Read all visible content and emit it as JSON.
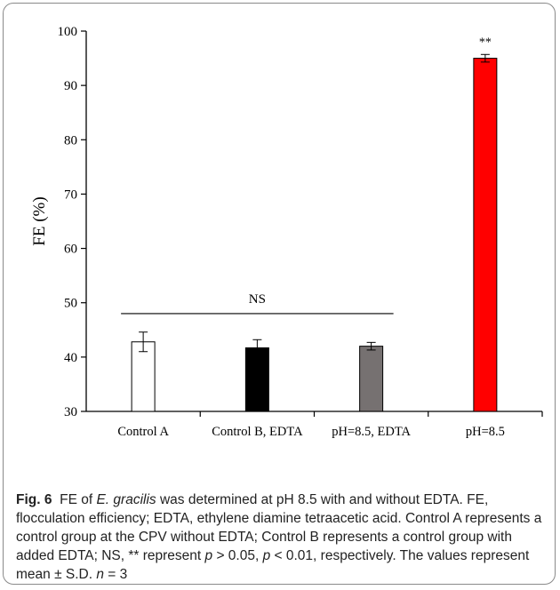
{
  "chart_data": {
    "type": "bar",
    "title": "",
    "xlabel": "",
    "ylabel": "FE (%)",
    "ylim": [
      30,
      100
    ],
    "yticks": [
      30,
      40,
      50,
      60,
      70,
      80,
      90,
      100
    ],
    "categories": [
      "Control A",
      "Control B, EDTA",
      "pH=8.5, EDTA",
      "pH=8.5"
    ],
    "values": [
      42.8,
      41.7,
      42.0,
      95.0
    ],
    "errors": [
      1.8,
      1.5,
      0.7,
      0.7
    ],
    "colors": [
      "#ffffff",
      "#000000",
      "#767171",
      "#ff0000"
    ],
    "annotations": [
      {
        "text": "NS",
        "spans": [
          "Control A",
          "pH=8.5, EDTA"
        ],
        "line_at": 48
      },
      {
        "text": "**",
        "category": "pH=8.5"
      }
    ],
    "grid": false,
    "legend": "none"
  },
  "caption": {
    "fig_label": "Fig. 6",
    "p1": "FE of ",
    "p2": "E. gracilis",
    "p3": " was determined at pH 8.5 with and without EDTA. FE, flocculation efficiency; EDTA, ethylene diamine tetraacetic acid. Control A represents a control group at the CPV without EDTA; Control B represents a control group with added EDTA; NS, ** represent ",
    "p4": "p",
    "p5": " > 0.05, ",
    "p6": "p",
    "p7": " < 0.01, respectively. The values represent mean ± S.D. ",
    "p8": "n",
    "p9": " = 3"
  }
}
